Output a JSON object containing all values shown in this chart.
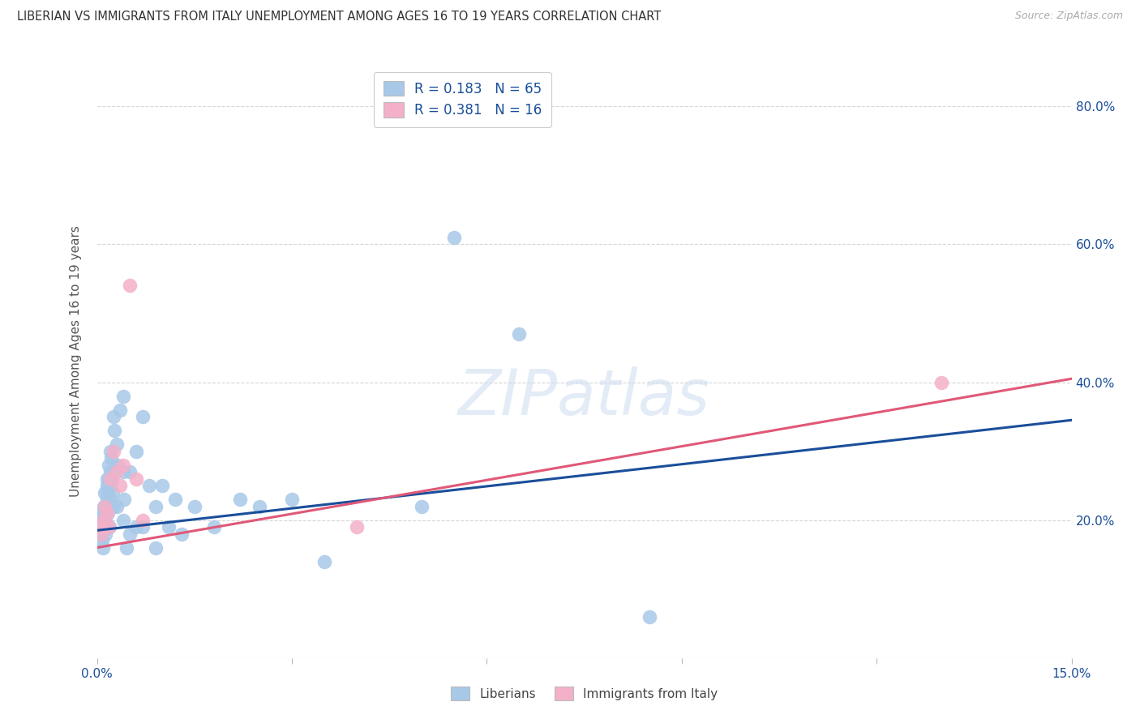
{
  "title": "LIBERIAN VS IMMIGRANTS FROM ITALY UNEMPLOYMENT AMONG AGES 16 TO 19 YEARS CORRELATION CHART",
  "source": "Source: ZipAtlas.com",
  "ylabel": "Unemployment Among Ages 16 to 19 years",
  "xlim": [
    0.0,
    0.15
  ],
  "ylim": [
    0.0,
    0.86
  ],
  "liberian_R": 0.183,
  "liberian_N": 65,
  "italy_R": 0.381,
  "italy_N": 16,
  "liberian_color": "#a8c8e8",
  "italy_color": "#f4b0c8",
  "liberian_line_color": "#1a4e9a",
  "italy_line_color": "#e05878",
  "legend_liberian_label": "Liberians",
  "legend_italy_label": "Immigrants from Italy",
  "watermark_text": "ZIPatlas",
  "background_color": "#ffffff",
  "grid_color": "#cccccc",
  "liberian_x": [
    0.0005,
    0.0005,
    0.0007,
    0.0008,
    0.0008,
    0.0009,
    0.001,
    0.001,
    0.001,
    0.0012,
    0.0012,
    0.0013,
    0.0013,
    0.0015,
    0.0015,
    0.0015,
    0.0016,
    0.0016,
    0.0017,
    0.0018,
    0.0018,
    0.0019,
    0.0019,
    0.002,
    0.002,
    0.002,
    0.0021,
    0.0022,
    0.0023,
    0.0024,
    0.0025,
    0.0026,
    0.0027,
    0.003,
    0.003,
    0.0032,
    0.0035,
    0.004,
    0.004,
    0.004,
    0.0042,
    0.0045,
    0.005,
    0.005,
    0.006,
    0.006,
    0.007,
    0.007,
    0.008,
    0.009,
    0.009,
    0.01,
    0.011,
    0.012,
    0.013,
    0.015,
    0.018,
    0.022,
    0.025,
    0.03,
    0.035,
    0.05,
    0.055,
    0.065,
    0.085
  ],
  "liberian_y": [
    0.19,
    0.18,
    0.21,
    0.2,
    0.17,
    0.16,
    0.22,
    0.21,
    0.2,
    0.24,
    0.22,
    0.2,
    0.18,
    0.26,
    0.24,
    0.22,
    0.25,
    0.23,
    0.21,
    0.28,
    0.26,
    0.22,
    0.19,
    0.3,
    0.27,
    0.25,
    0.23,
    0.29,
    0.26,
    0.24,
    0.22,
    0.35,
    0.33,
    0.31,
    0.22,
    0.28,
    0.36,
    0.38,
    0.27,
    0.2,
    0.23,
    0.16,
    0.27,
    0.18,
    0.3,
    0.19,
    0.35,
    0.19,
    0.25,
    0.22,
    0.16,
    0.25,
    0.19,
    0.23,
    0.18,
    0.22,
    0.19,
    0.23,
    0.22,
    0.23,
    0.14,
    0.22,
    0.61,
    0.47,
    0.06
  ],
  "italy_x": [
    0.0005,
    0.0007,
    0.001,
    0.0012,
    0.0015,
    0.0018,
    0.002,
    0.0025,
    0.003,
    0.0035,
    0.004,
    0.005,
    0.006,
    0.007,
    0.04,
    0.13
  ],
  "italy_y": [
    0.19,
    0.18,
    0.2,
    0.22,
    0.21,
    0.19,
    0.26,
    0.3,
    0.27,
    0.25,
    0.28,
    0.54,
    0.26,
    0.2,
    0.19,
    0.4
  ],
  "liberian_trend_x": [
    0.0,
    0.15
  ],
  "liberian_trend_y": [
    0.185,
    0.345
  ],
  "italy_trend_x": [
    0.0,
    0.15
  ],
  "italy_trend_y": [
    0.16,
    0.405
  ]
}
